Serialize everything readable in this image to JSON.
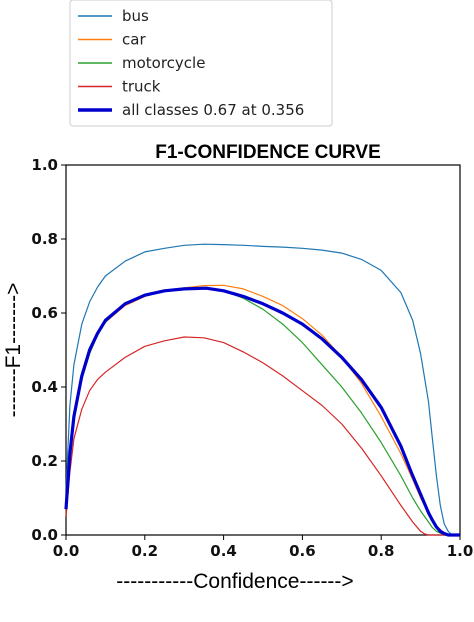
{
  "chart_data": {
    "type": "line",
    "title": "F1-CONFIDENCE CURVE",
    "xlabel": "-----------Confidence------>",
    "ylabel": "-------F1------->",
    "xlim": [
      0,
      1
    ],
    "ylim": [
      0,
      1
    ],
    "xticks": [
      "0.0",
      "0.2",
      "0.4",
      "0.6",
      "0.8",
      "1.0"
    ],
    "yticks": [
      "0.0",
      "0.2",
      "0.4",
      "0.6",
      "0.8",
      "1.0"
    ],
    "grid": false,
    "legend_position": "top-left, above plot",
    "series": [
      {
        "name": "bus",
        "color": "#1f77b4",
        "x": [
          0.0,
          0.01,
          0.02,
          0.04,
          0.06,
          0.08,
          0.1,
          0.15,
          0.2,
          0.25,
          0.3,
          0.35,
          0.4,
          0.45,
          0.5,
          0.55,
          0.6,
          0.65,
          0.7,
          0.75,
          0.8,
          0.85,
          0.88,
          0.9,
          0.92,
          0.93,
          0.94,
          0.95,
          0.96,
          0.97,
          0.98,
          0.99,
          1.0
        ],
        "y": [
          0.12,
          0.35,
          0.46,
          0.57,
          0.63,
          0.67,
          0.7,
          0.74,
          0.765,
          0.775,
          0.783,
          0.786,
          0.785,
          0.783,
          0.78,
          0.778,
          0.775,
          0.77,
          0.762,
          0.745,
          0.715,
          0.655,
          0.58,
          0.49,
          0.36,
          0.26,
          0.16,
          0.08,
          0.03,
          0.01,
          0.0,
          0.0,
          0.0
        ]
      },
      {
        "name": "car",
        "color": "#ff7f0e",
        "x": [
          0.0,
          0.01,
          0.02,
          0.04,
          0.06,
          0.08,
          0.1,
          0.15,
          0.2,
          0.25,
          0.3,
          0.35,
          0.4,
          0.45,
          0.5,
          0.55,
          0.6,
          0.65,
          0.7,
          0.75,
          0.8,
          0.85,
          0.88,
          0.9,
          0.92,
          0.93,
          0.94,
          0.95,
          0.96,
          0.97,
          0.98,
          1.0
        ],
        "y": [
          0.05,
          0.2,
          0.31,
          0.42,
          0.49,
          0.54,
          0.575,
          0.62,
          0.645,
          0.66,
          0.668,
          0.674,
          0.675,
          0.665,
          0.645,
          0.62,
          0.585,
          0.54,
          0.48,
          0.41,
          0.32,
          0.22,
          0.15,
          0.1,
          0.06,
          0.04,
          0.025,
          0.015,
          0.005,
          0.0,
          0.0,
          0.0
        ]
      },
      {
        "name": "motorcycle",
        "color": "#2ca02c",
        "x": [
          0.0,
          0.01,
          0.02,
          0.04,
          0.06,
          0.08,
          0.1,
          0.15,
          0.2,
          0.25,
          0.3,
          0.35,
          0.4,
          0.45,
          0.5,
          0.55,
          0.6,
          0.65,
          0.7,
          0.75,
          0.8,
          0.85,
          0.88,
          0.9,
          0.92,
          0.93,
          0.94,
          0.95,
          0.96,
          1.0
        ],
        "y": [
          0.05,
          0.2,
          0.31,
          0.42,
          0.49,
          0.54,
          0.575,
          0.625,
          0.65,
          0.662,
          0.665,
          0.665,
          0.66,
          0.64,
          0.61,
          0.57,
          0.52,
          0.46,
          0.4,
          0.33,
          0.25,
          0.16,
          0.1,
          0.065,
          0.035,
          0.02,
          0.01,
          0.005,
          0.0,
          0.0
        ]
      },
      {
        "name": "truck",
        "color": "#d62728",
        "x": [
          0.0,
          0.01,
          0.02,
          0.04,
          0.06,
          0.08,
          0.1,
          0.15,
          0.2,
          0.25,
          0.3,
          0.35,
          0.4,
          0.45,
          0.5,
          0.55,
          0.6,
          0.65,
          0.7,
          0.75,
          0.8,
          0.85,
          0.88,
          0.9,
          0.91,
          0.92,
          1.0
        ],
        "y": [
          0.05,
          0.17,
          0.26,
          0.34,
          0.39,
          0.42,
          0.44,
          0.48,
          0.51,
          0.525,
          0.535,
          0.533,
          0.52,
          0.495,
          0.465,
          0.43,
          0.39,
          0.35,
          0.3,
          0.235,
          0.16,
          0.08,
          0.035,
          0.01,
          0.003,
          0.0,
          0.0
        ]
      },
      {
        "name": "all classes 0.67 at 0.356",
        "color": "#0000cc",
        "bold": true,
        "x": [
          0.0,
          0.01,
          0.02,
          0.04,
          0.06,
          0.08,
          0.1,
          0.15,
          0.2,
          0.25,
          0.3,
          0.356,
          0.4,
          0.45,
          0.5,
          0.55,
          0.6,
          0.65,
          0.7,
          0.75,
          0.8,
          0.85,
          0.88,
          0.9,
          0.92,
          0.93,
          0.94,
          0.95,
          0.96,
          0.97,
          1.0
        ],
        "y": [
          0.07,
          0.22,
          0.32,
          0.43,
          0.5,
          0.545,
          0.58,
          0.625,
          0.648,
          0.66,
          0.665,
          0.667,
          0.66,
          0.645,
          0.625,
          0.6,
          0.57,
          0.53,
          0.48,
          0.42,
          0.345,
          0.24,
          0.16,
          0.11,
          0.06,
          0.04,
          0.022,
          0.01,
          0.004,
          0.0,
          0.0
        ]
      }
    ]
  }
}
